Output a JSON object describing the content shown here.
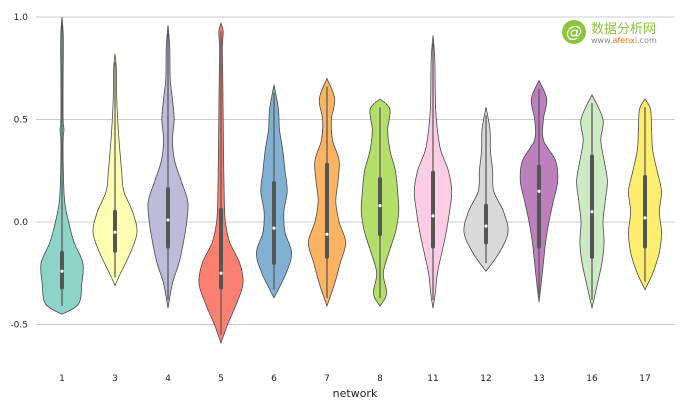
{
  "chart_data": {
    "type": "violin",
    "title": "",
    "xlabel": "network",
    "ylabel": "",
    "ylim": [
      -0.7,
      1.0
    ],
    "yticks": [
      -0.5,
      0.0,
      0.5,
      1.0
    ],
    "ytick_labels": [
      "-0.5",
      "0.0",
      "0.5",
      "1.0"
    ],
    "grid": true,
    "categories": [
      "1",
      "3",
      "4",
      "5",
      "6",
      "7",
      "8",
      "11",
      "12",
      "13",
      "16",
      "17"
    ],
    "violins": [
      {
        "category": "1",
        "color": "#8dd3c7",
        "min": -0.45,
        "max": 1.0,
        "q1": -0.32,
        "median": -0.24,
        "q3": -0.15,
        "profile": [
          [
            -0.45,
            1.0
          ],
          [
            -0.4,
            0.75
          ],
          [
            -0.3,
            0.9
          ],
          [
            -0.2,
            0.95
          ],
          [
            -0.1,
            0.55
          ],
          [
            0.0,
            0.3
          ],
          [
            0.1,
            0.12
          ],
          [
            0.25,
            0.06
          ],
          [
            0.4,
            0.05
          ],
          [
            0.45,
            0.09
          ],
          [
            0.5,
            0.05
          ],
          [
            0.7,
            0.05
          ],
          [
            0.9,
            0.06
          ],
          [
            1.0,
            0.0
          ]
        ]
      },
      {
        "category": "3",
        "color": "#ffffb3",
        "min": -0.31,
        "max": 0.82,
        "q1": -0.14,
        "median": -0.05,
        "q3": 0.05,
        "profile": [
          [
            -0.31,
            0.0
          ],
          [
            -0.25,
            0.25
          ],
          [
            -0.15,
            0.7
          ],
          [
            -0.05,
            1.0
          ],
          [
            0.05,
            0.8
          ],
          [
            0.15,
            0.4
          ],
          [
            0.25,
            0.3
          ],
          [
            0.35,
            0.22
          ],
          [
            0.45,
            0.15
          ],
          [
            0.6,
            0.08
          ],
          [
            0.75,
            0.06
          ],
          [
            0.82,
            0.0
          ]
        ]
      },
      {
        "category": "4",
        "color": "#bebada",
        "min": -0.42,
        "max": 0.96,
        "q1": -0.12,
        "median": 0.01,
        "q3": 0.16,
        "profile": [
          [
            -0.42,
            0.0
          ],
          [
            -0.3,
            0.2
          ],
          [
            -0.2,
            0.5
          ],
          [
            -0.1,
            0.7
          ],
          [
            0.0,
            0.85
          ],
          [
            0.1,
            0.9
          ],
          [
            0.2,
            0.6
          ],
          [
            0.3,
            0.3
          ],
          [
            0.4,
            0.2
          ],
          [
            0.5,
            0.28
          ],
          [
            0.6,
            0.2
          ],
          [
            0.7,
            0.1
          ],
          [
            0.85,
            0.08
          ],
          [
            0.96,
            0.0
          ]
        ]
      },
      {
        "category": "5",
        "color": "#fb8072",
        "min": -0.59,
        "max": 0.97,
        "q1": -0.32,
        "median": -0.25,
        "q3": 0.06,
        "profile": [
          [
            -0.59,
            0.0
          ],
          [
            -0.5,
            0.3
          ],
          [
            -0.4,
            0.7
          ],
          [
            -0.3,
            1.0
          ],
          [
            -0.2,
            0.85
          ],
          [
            -0.1,
            0.4
          ],
          [
            0.0,
            0.2
          ],
          [
            0.1,
            0.15
          ],
          [
            0.3,
            0.12
          ],
          [
            0.5,
            0.1
          ],
          [
            0.7,
            0.08
          ],
          [
            0.85,
            0.06
          ],
          [
            0.93,
            0.1
          ],
          [
            0.97,
            0.0
          ]
        ]
      },
      {
        "category": "6",
        "color": "#80b1d3",
        "min": -0.37,
        "max": 0.67,
        "q1": -0.2,
        "median": -0.03,
        "q3": 0.19,
        "profile": [
          [
            -0.37,
            0.0
          ],
          [
            -0.25,
            0.55
          ],
          [
            -0.15,
            0.8
          ],
          [
            -0.05,
            0.5
          ],
          [
            0.05,
            0.45
          ],
          [
            0.15,
            0.6
          ],
          [
            0.25,
            0.5
          ],
          [
            0.35,
            0.4
          ],
          [
            0.45,
            0.25
          ],
          [
            0.55,
            0.2
          ],
          [
            0.67,
            0.0
          ]
        ]
      },
      {
        "category": "7",
        "color": "#fdb462",
        "min": -0.41,
        "max": 0.7,
        "q1": -0.17,
        "median": -0.06,
        "q3": 0.28,
        "profile": [
          [
            -0.41,
            0.0
          ],
          [
            -0.3,
            0.35
          ],
          [
            -0.2,
            0.6
          ],
          [
            -0.1,
            0.85
          ],
          [
            0.0,
            0.55
          ],
          [
            0.1,
            0.4
          ],
          [
            0.2,
            0.5
          ],
          [
            0.3,
            0.55
          ],
          [
            0.4,
            0.25
          ],
          [
            0.5,
            0.2
          ],
          [
            0.6,
            0.35
          ],
          [
            0.7,
            0.0
          ]
        ]
      },
      {
        "category": "8",
        "color": "#b3de69",
        "min": -0.41,
        "max": 0.6,
        "q1": -0.06,
        "median": 0.08,
        "q3": 0.21,
        "profile": [
          [
            -0.41,
            0.0
          ],
          [
            -0.35,
            0.3
          ],
          [
            -0.25,
            0.15
          ],
          [
            -0.15,
            0.4
          ],
          [
            -0.05,
            0.7
          ],
          [
            0.05,
            0.85
          ],
          [
            0.15,
            0.8
          ],
          [
            0.25,
            0.7
          ],
          [
            0.35,
            0.45
          ],
          [
            0.45,
            0.35
          ],
          [
            0.55,
            0.45
          ],
          [
            0.6,
            0.0
          ]
        ]
      },
      {
        "category": "11",
        "color": "#fccde5",
        "min": -0.42,
        "max": 0.91,
        "q1": -0.12,
        "median": 0.03,
        "q3": 0.24,
        "profile": [
          [
            -0.42,
            0.0
          ],
          [
            -0.35,
            0.1
          ],
          [
            -0.25,
            0.2
          ],
          [
            -0.15,
            0.4
          ],
          [
            -0.05,
            0.6
          ],
          [
            0.05,
            0.75
          ],
          [
            0.15,
            0.85
          ],
          [
            0.25,
            0.7
          ],
          [
            0.35,
            0.35
          ],
          [
            0.45,
            0.2
          ],
          [
            0.55,
            0.12
          ],
          [
            0.65,
            0.1
          ],
          [
            0.8,
            0.08
          ],
          [
            0.91,
            0.0
          ]
        ]
      },
      {
        "category": "12",
        "color": "#d9d9d9",
        "min": -0.24,
        "max": 0.56,
        "q1": -0.1,
        "median": -0.02,
        "q3": 0.08,
        "profile": [
          [
            -0.24,
            0.0
          ],
          [
            -0.15,
            0.6
          ],
          [
            -0.05,
            1.0
          ],
          [
            0.05,
            0.8
          ],
          [
            0.15,
            0.35
          ],
          [
            0.25,
            0.3
          ],
          [
            0.35,
            0.2
          ],
          [
            0.45,
            0.18
          ],
          [
            0.56,
            0.0
          ]
        ]
      },
      {
        "category": "13",
        "color": "#bc80bd",
        "min": -0.39,
        "max": 0.69,
        "q1": -0.12,
        "median": 0.15,
        "q3": 0.27,
        "profile": [
          [
            -0.39,
            0.0
          ],
          [
            -0.3,
            0.1
          ],
          [
            -0.2,
            0.2
          ],
          [
            -0.1,
            0.3
          ],
          [
            0.0,
            0.45
          ],
          [
            0.1,
            0.65
          ],
          [
            0.2,
            0.85
          ],
          [
            0.3,
            0.75
          ],
          [
            0.4,
            0.2
          ],
          [
            0.5,
            0.2
          ],
          [
            0.6,
            0.35
          ],
          [
            0.69,
            0.0
          ]
        ]
      },
      {
        "category": "16",
        "color": "#ccebc5",
        "min": -0.42,
        "max": 0.62,
        "q1": -0.17,
        "median": 0.05,
        "q3": 0.32,
        "profile": [
          [
            -0.42,
            0.0
          ],
          [
            -0.3,
            0.25
          ],
          [
            -0.2,
            0.45
          ],
          [
            -0.1,
            0.55
          ],
          [
            0.0,
            0.5
          ],
          [
            0.1,
            0.6
          ],
          [
            0.2,
            0.7
          ],
          [
            0.3,
            0.55
          ],
          [
            0.4,
            0.4
          ],
          [
            0.5,
            0.5
          ],
          [
            0.62,
            0.0
          ]
        ]
      },
      {
        "category": "17",
        "color": "#ffed6f",
        "min": -0.33,
        "max": 0.6,
        "q1": -0.12,
        "median": 0.02,
        "q3": 0.22,
        "profile": [
          [
            -0.33,
            0.0
          ],
          [
            -0.25,
            0.35
          ],
          [
            -0.15,
            0.65
          ],
          [
            -0.05,
            0.75
          ],
          [
            0.05,
            0.65
          ],
          [
            0.15,
            0.75
          ],
          [
            0.25,
            0.55
          ],
          [
            0.35,
            0.35
          ],
          [
            0.45,
            0.3
          ],
          [
            0.55,
            0.25
          ],
          [
            0.6,
            0.0
          ]
        ]
      }
    ]
  },
  "watermark": {
    "logo_glyph": "@",
    "name": "数据分析网",
    "url_prefix": "www.",
    "url_domain": "afenxi",
    "url_suffix": ".com"
  }
}
